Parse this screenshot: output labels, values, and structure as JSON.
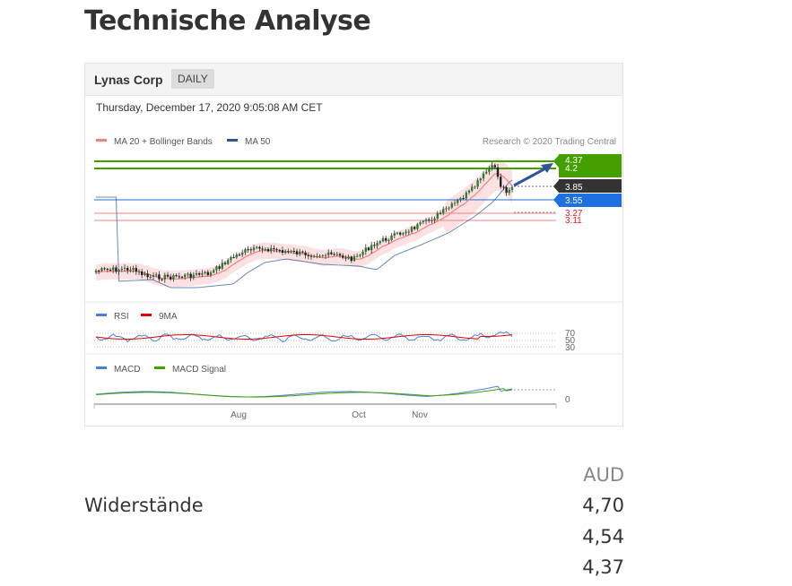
{
  "page": {
    "heading": "Technische Analyse"
  },
  "chart_card": {
    "company": "Lynas Corp",
    "period": "DAILY",
    "timestamp": "Thursday, December 17, 2020 9:05:08 AM CET",
    "credit": "Research © 2020 Trading Central",
    "colors": {
      "resistance": "#44a000",
      "pivot": "#333333",
      "support": "#1e6fe0",
      "support_text": "#e02020",
      "ma20": "#f08080",
      "ma50": "#2f5597",
      "rsi": "#4a7fd9",
      "rsi_ma": "#e00000",
      "macd": "#4a7fd9",
      "macd_signal": "#44a000",
      "band_fill": "#fadadb"
    }
  },
  "chart_data": {
    "type": "candlestick",
    "legend": [
      "MA 20 + Bollinger Bands",
      "MA 50"
    ],
    "levels": {
      "resistance": [
        4.37,
        4.2
      ],
      "pivot": 3.85,
      "support": [
        3.55,
        3.27,
        3.11
      ]
    },
    "x_tick_labels": [
      "Aug",
      "Oct",
      "Nov"
    ],
    "rsi": {
      "legend": [
        "RSI",
        "9MA"
      ],
      "tick_labels": [
        "70",
        "50",
        "30"
      ]
    },
    "macd": {
      "legend": [
        "MACD",
        "MACD Signal"
      ],
      "tick_labels": [
        "0"
      ]
    }
  },
  "resistance_table": {
    "currency": "AUD",
    "label": "Widerstände",
    "values": [
      "4,70",
      "4,54",
      "4,37"
    ]
  }
}
